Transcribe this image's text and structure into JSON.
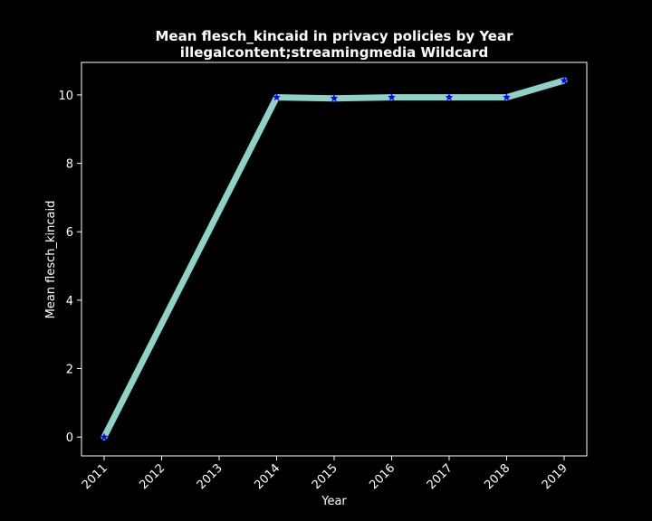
{
  "chart_data": {
    "type": "line",
    "title_line1": "Mean flesch_kincaid in privacy policies by Year",
    "title_line2": "illegalcontent;streamingmedia Wildcard",
    "xlabel": "Year",
    "ylabel": "Mean flesch_kincaid",
    "x": [
      "2011",
      "2012",
      "2013",
      "2014",
      "2015",
      "2016",
      "2017",
      "2018",
      "2019"
    ],
    "yticks": [
      0,
      2,
      4,
      6,
      8,
      10
    ],
    "ylim": [
      -0.55,
      10.95
    ],
    "grid": false,
    "series": [
      {
        "points": [
          {
            "x": "2011",
            "y": 0.0
          },
          {
            "x": "2014",
            "y": 9.93
          },
          {
            "x": "2015",
            "y": 9.9
          },
          {
            "x": "2016",
            "y": 9.93
          },
          {
            "x": "2017",
            "y": 9.93
          },
          {
            "x": "2018",
            "y": 9.93
          },
          {
            "x": "2019",
            "y": 10.42
          }
        ],
        "line_color": "#8dd3c7",
        "marker_color": "#0000ff",
        "marker": "star"
      }
    ],
    "colors": {
      "background": "#000000",
      "axes": "#ffffff",
      "text": "#ffffff"
    }
  }
}
